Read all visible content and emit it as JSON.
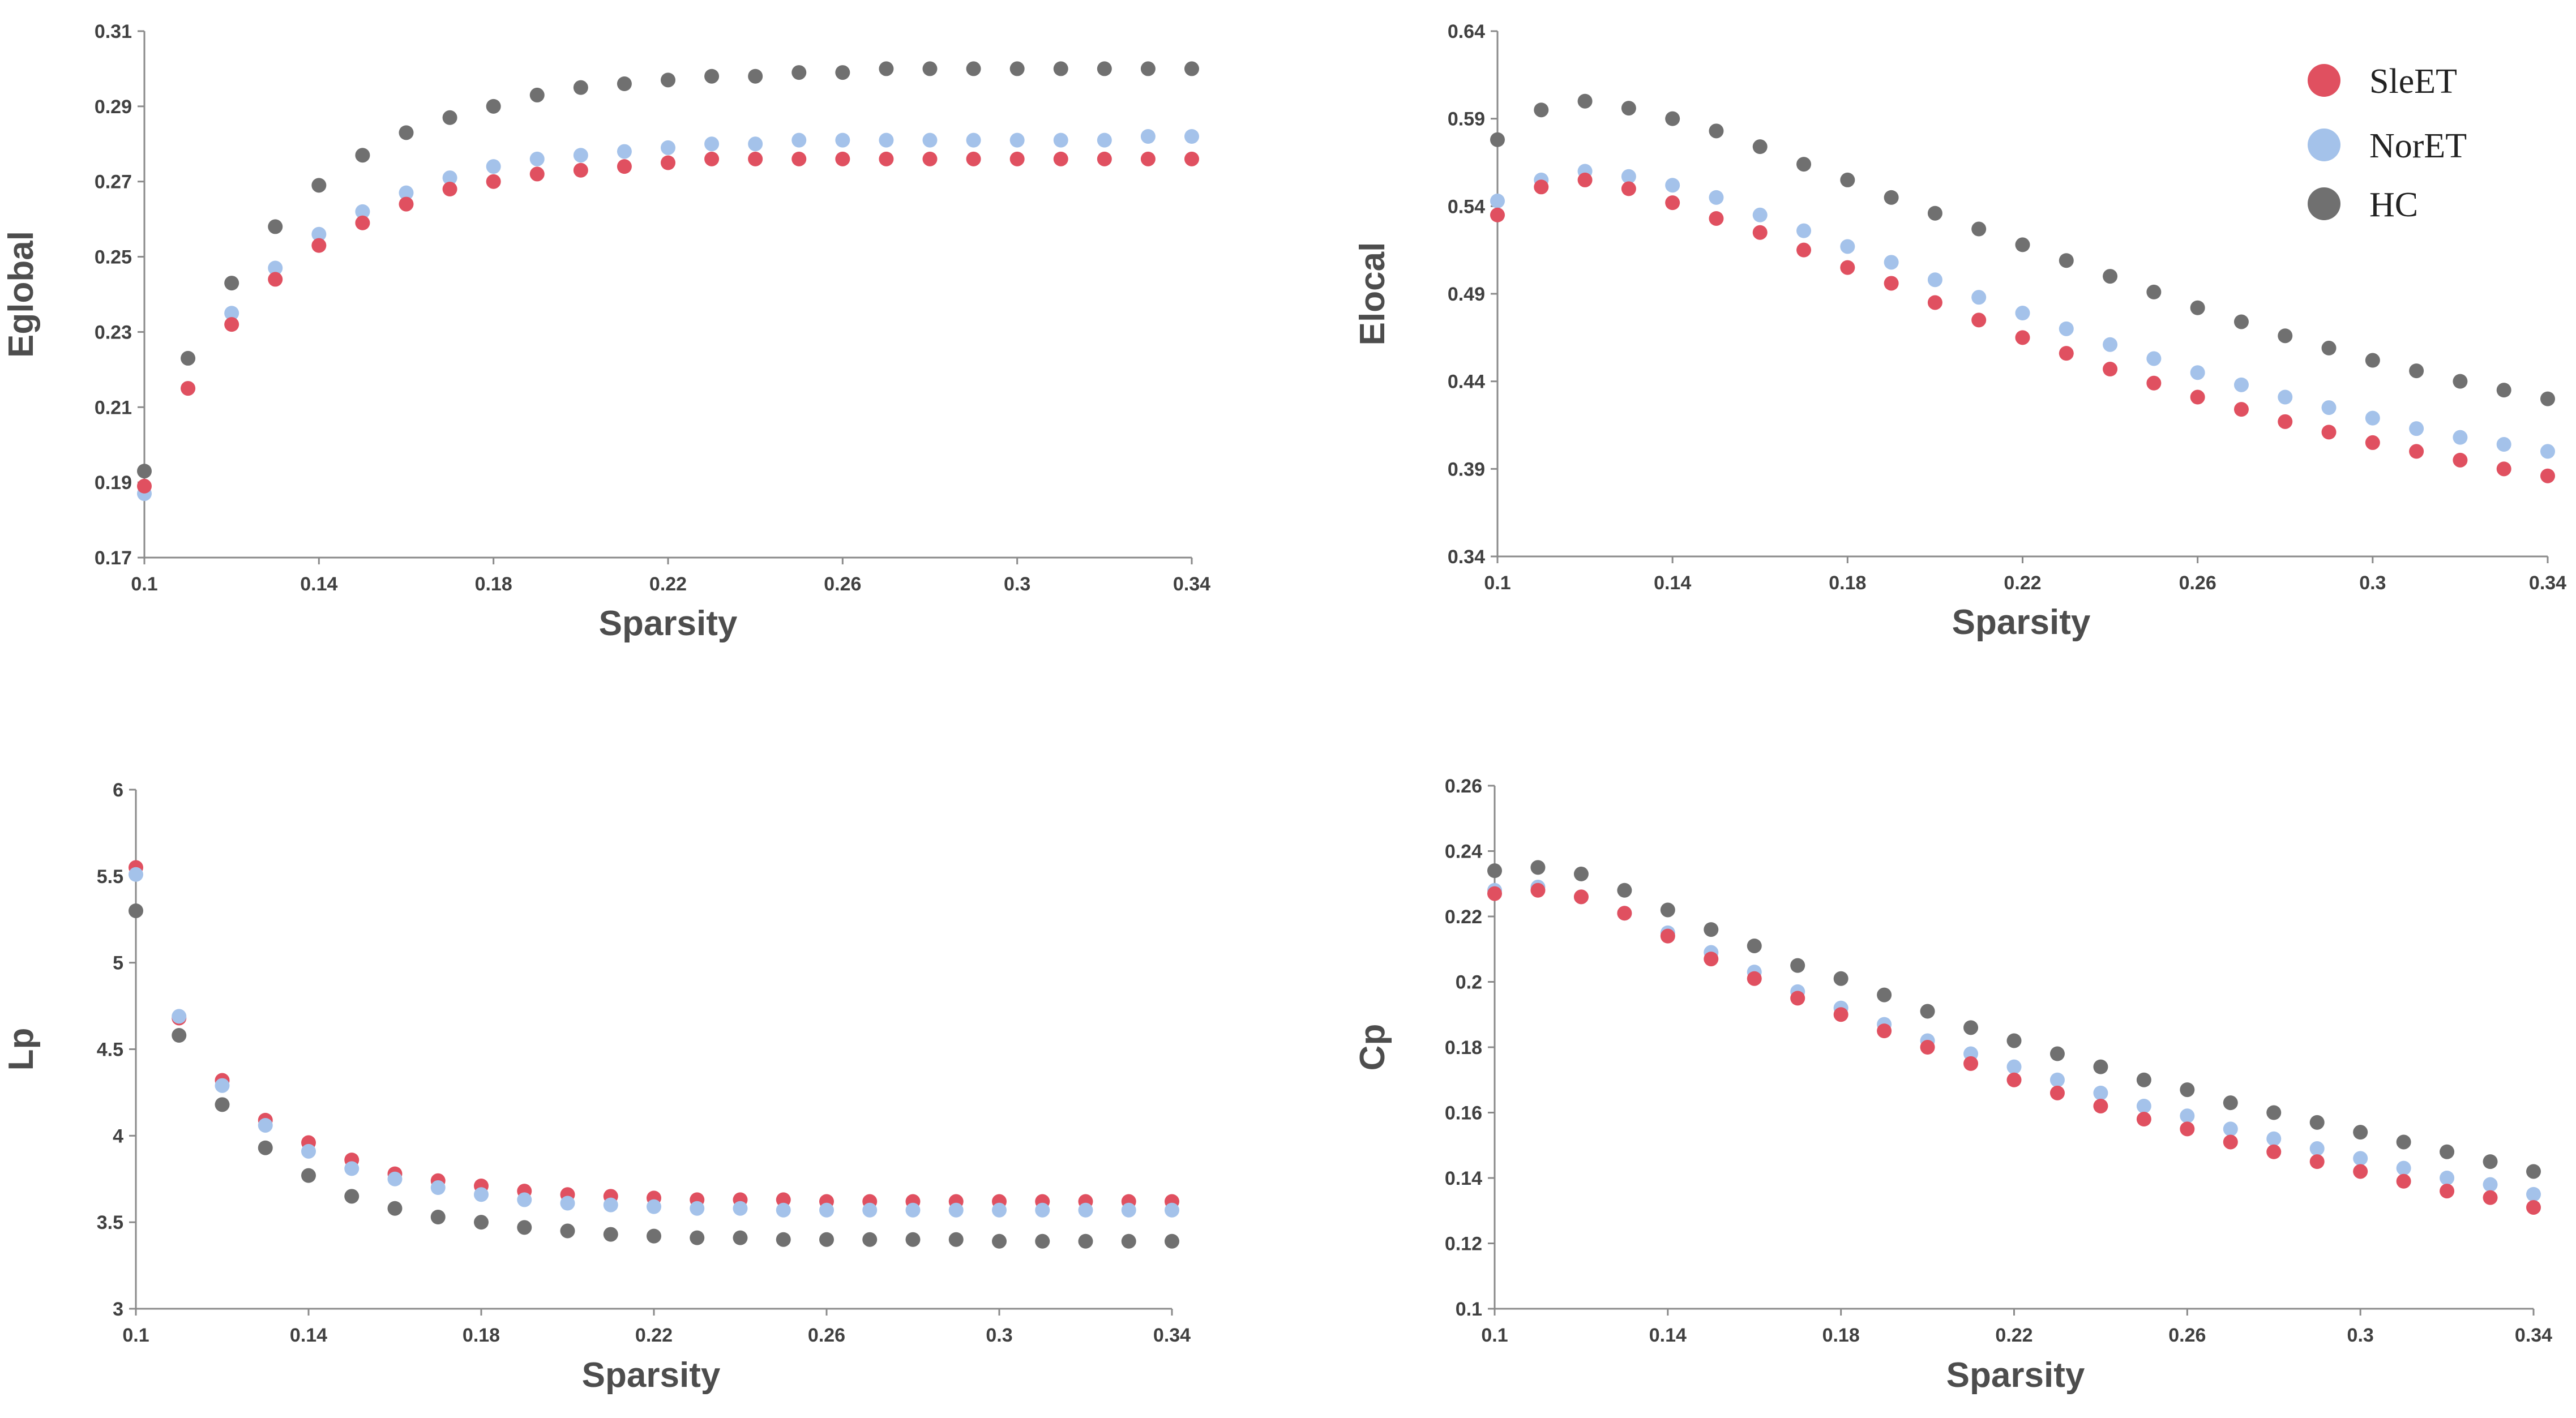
{
  "legend": {
    "items": [
      {
        "name": "SleET",
        "color": "#e05060"
      },
      {
        "name": "NorET",
        "color": "#a4c2ea"
      },
      {
        "name": "HC",
        "color": "#707070"
      }
    ]
  },
  "chart_data": [
    {
      "type": "scatter",
      "id": "eglobal",
      "title": "",
      "xlabel": "Sparsity",
      "ylabel": "Eglobal",
      "xlim": [
        0.1,
        0.34
      ],
      "ylim": [
        0.17,
        0.31
      ],
      "xticks": [
        "0.1",
        "0.14",
        "0.18",
        "0.22",
        "0.26",
        "0.3",
        "0.34"
      ],
      "yticks": [
        "0.17",
        "0.19",
        "0.21",
        "0.23",
        "0.25",
        "0.27",
        "0.29",
        "0.31"
      ],
      "x": [
        0.1,
        0.11,
        0.12,
        0.13,
        0.14,
        0.15,
        0.16,
        0.17,
        0.18,
        0.19,
        0.2,
        0.21,
        0.22,
        0.23,
        0.24,
        0.25,
        0.26,
        0.27,
        0.28,
        0.29,
        0.3,
        0.31,
        0.32,
        0.33,
        0.34
      ],
      "series": [
        {
          "name": "HC",
          "values": [
            0.193,
            0.223,
            0.243,
            0.258,
            0.269,
            0.277,
            0.283,
            0.287,
            0.29,
            0.293,
            0.295,
            0.296,
            0.297,
            0.298,
            0.298,
            0.299,
            0.299,
            0.3,
            0.3,
            0.3,
            0.3,
            0.3,
            0.3,
            0.3,
            0.3
          ]
        },
        {
          "name": "NorET",
          "values": [
            0.187,
            0.215,
            0.235,
            0.247,
            0.256,
            0.262,
            0.267,
            0.271,
            0.274,
            0.276,
            0.277,
            0.278,
            0.279,
            0.28,
            0.28,
            0.281,
            0.281,
            0.281,
            0.281,
            0.281,
            0.281,
            0.281,
            0.281,
            0.282,
            0.282
          ]
        },
        {
          "name": "SleET",
          "values": [
            0.189,
            0.215,
            0.232,
            0.244,
            0.253,
            0.259,
            0.264,
            0.268,
            0.27,
            0.272,
            0.273,
            0.274,
            0.275,
            0.276,
            0.276,
            0.276,
            0.276,
            0.276,
            0.276,
            0.276,
            0.276,
            0.276,
            0.276,
            0.276,
            0.276
          ]
        }
      ]
    },
    {
      "type": "scatter",
      "id": "elocal",
      "title": "",
      "xlabel": "Sparsity",
      "ylabel": "Elocal",
      "xlim": [
        0.1,
        0.34
      ],
      "ylim": [
        0.34,
        0.64
      ],
      "xticks": [
        "0.1",
        "0.14",
        "0.18",
        "0.22",
        "0.26",
        "0.3",
        "0.34"
      ],
      "yticks": [
        "0.34",
        "0.39",
        "0.44",
        "0.49",
        "0.54",
        "0.59",
        "0.64"
      ],
      "x": [
        0.1,
        0.11,
        0.12,
        0.13,
        0.14,
        0.15,
        0.16,
        0.17,
        0.18,
        0.19,
        0.2,
        0.21,
        0.22,
        0.23,
        0.24,
        0.25,
        0.26,
        0.27,
        0.28,
        0.29,
        0.3,
        0.31,
        0.32,
        0.33,
        0.34
      ],
      "series": [
        {
          "name": "HC",
          "values": [
            0.578,
            0.595,
            0.6,
            0.596,
            0.59,
            0.583,
            0.574,
            0.564,
            0.555,
            0.545,
            0.536,
            0.527,
            0.518,
            0.509,
            0.5,
            0.491,
            0.482,
            0.474,
            0.466,
            0.459,
            0.452,
            0.446,
            0.44,
            0.435,
            0.43
          ]
        },
        {
          "name": "NorET",
          "values": [
            0.543,
            0.555,
            0.56,
            0.557,
            0.552,
            0.545,
            0.535,
            0.526,
            0.517,
            0.508,
            0.498,
            0.488,
            0.479,
            0.47,
            0.461,
            0.453,
            0.445,
            0.438,
            0.431,
            0.425,
            0.419,
            0.413,
            0.408,
            0.404,
            0.4
          ]
        },
        {
          "name": "SleET",
          "values": [
            0.535,
            0.551,
            0.555,
            0.55,
            0.542,
            0.533,
            0.525,
            0.515,
            0.505,
            0.496,
            0.485,
            0.475,
            0.465,
            0.456,
            0.447,
            0.439,
            0.431,
            0.424,
            0.417,
            0.411,
            0.405,
            0.4,
            0.395,
            0.39,
            0.386
          ]
        }
      ]
    },
    {
      "type": "scatter",
      "id": "lp",
      "title": "",
      "xlabel": "Sparsity",
      "ylabel": "Lp",
      "xlim": [
        0.1,
        0.34
      ],
      "ylim": [
        3,
        6
      ],
      "xticks": [
        "0.1",
        "0.14",
        "0.18",
        "0.22",
        "0.26",
        "0.3",
        "0.34"
      ],
      "yticks": [
        "3",
        "3.5",
        "4",
        "4.5",
        "5",
        "5.5",
        "6"
      ],
      "x": [
        0.1,
        0.11,
        0.12,
        0.13,
        0.14,
        0.15,
        0.16,
        0.17,
        0.18,
        0.19,
        0.2,
        0.21,
        0.22,
        0.23,
        0.24,
        0.25,
        0.26,
        0.27,
        0.28,
        0.29,
        0.3,
        0.31,
        0.32,
        0.33,
        0.34
      ],
      "series": [
        {
          "name": "SleET",
          "values": [
            5.55,
            4.68,
            4.32,
            4.09,
            3.96,
            3.86,
            3.78,
            3.74,
            3.71,
            3.68,
            3.66,
            3.65,
            3.64,
            3.63,
            3.63,
            3.63,
            3.62,
            3.62,
            3.62,
            3.62,
            3.62,
            3.62,
            3.62,
            3.62,
            3.62
          ]
        },
        {
          "name": "NorET",
          "values": [
            5.51,
            4.69,
            4.29,
            4.06,
            3.91,
            3.81,
            3.75,
            3.7,
            3.66,
            3.63,
            3.61,
            3.6,
            3.59,
            3.58,
            3.58,
            3.57,
            3.57,
            3.57,
            3.57,
            3.57,
            3.57,
            3.57,
            3.57,
            3.57,
            3.57
          ]
        },
        {
          "name": "HC",
          "values": [
            5.3,
            4.58,
            4.18,
            3.93,
            3.77,
            3.65,
            3.58,
            3.53,
            3.5,
            3.47,
            3.45,
            3.43,
            3.42,
            3.41,
            3.41,
            3.4,
            3.4,
            3.4,
            3.4,
            3.4,
            3.39,
            3.39,
            3.39,
            3.39,
            3.39
          ]
        }
      ]
    },
    {
      "type": "scatter",
      "id": "cp",
      "title": "",
      "xlabel": "Sparsity",
      "ylabel": "Cp",
      "xlim": [
        0.1,
        0.34
      ],
      "ylim": [
        0.1,
        0.26
      ],
      "xticks": [
        "0.1",
        "0.14",
        "0.18",
        "0.22",
        "0.26",
        "0.3",
        "0.34"
      ],
      "yticks": [
        "0.1",
        "0.12",
        "0.14",
        "0.16",
        "0.18",
        "0.2",
        "0.22",
        "0.24",
        "0.26"
      ],
      "x": [
        0.1,
        0.11,
        0.12,
        0.13,
        0.14,
        0.15,
        0.16,
        0.17,
        0.18,
        0.19,
        0.2,
        0.21,
        0.22,
        0.23,
        0.24,
        0.25,
        0.26,
        0.27,
        0.28,
        0.29,
        0.3,
        0.31,
        0.32,
        0.33,
        0.34
      ],
      "series": [
        {
          "name": "HC",
          "values": [
            0.234,
            0.235,
            0.233,
            0.228,
            0.222,
            0.216,
            0.211,
            0.205,
            0.201,
            0.196,
            0.191,
            0.186,
            0.182,
            0.178,
            0.174,
            0.17,
            0.167,
            0.163,
            0.16,
            0.157,
            0.154,
            0.151,
            0.148,
            0.145,
            0.142
          ]
        },
        {
          "name": "NorET",
          "values": [
            0.228,
            0.229,
            0.226,
            0.221,
            0.215,
            0.209,
            0.203,
            0.197,
            0.192,
            0.187,
            0.182,
            0.178,
            0.174,
            0.17,
            0.166,
            0.162,
            0.159,
            0.155,
            0.152,
            0.149,
            0.146,
            0.143,
            0.14,
            0.138,
            0.135
          ]
        },
        {
          "name": "SleET",
          "values": [
            0.227,
            0.228,
            0.226,
            0.221,
            0.214,
            0.207,
            0.201,
            0.195,
            0.19,
            0.185,
            0.18,
            0.175,
            0.17,
            0.166,
            0.162,
            0.158,
            0.155,
            0.151,
            0.148,
            0.145,
            0.142,
            0.139,
            0.136,
            0.134,
            0.131
          ]
        }
      ]
    }
  ]
}
